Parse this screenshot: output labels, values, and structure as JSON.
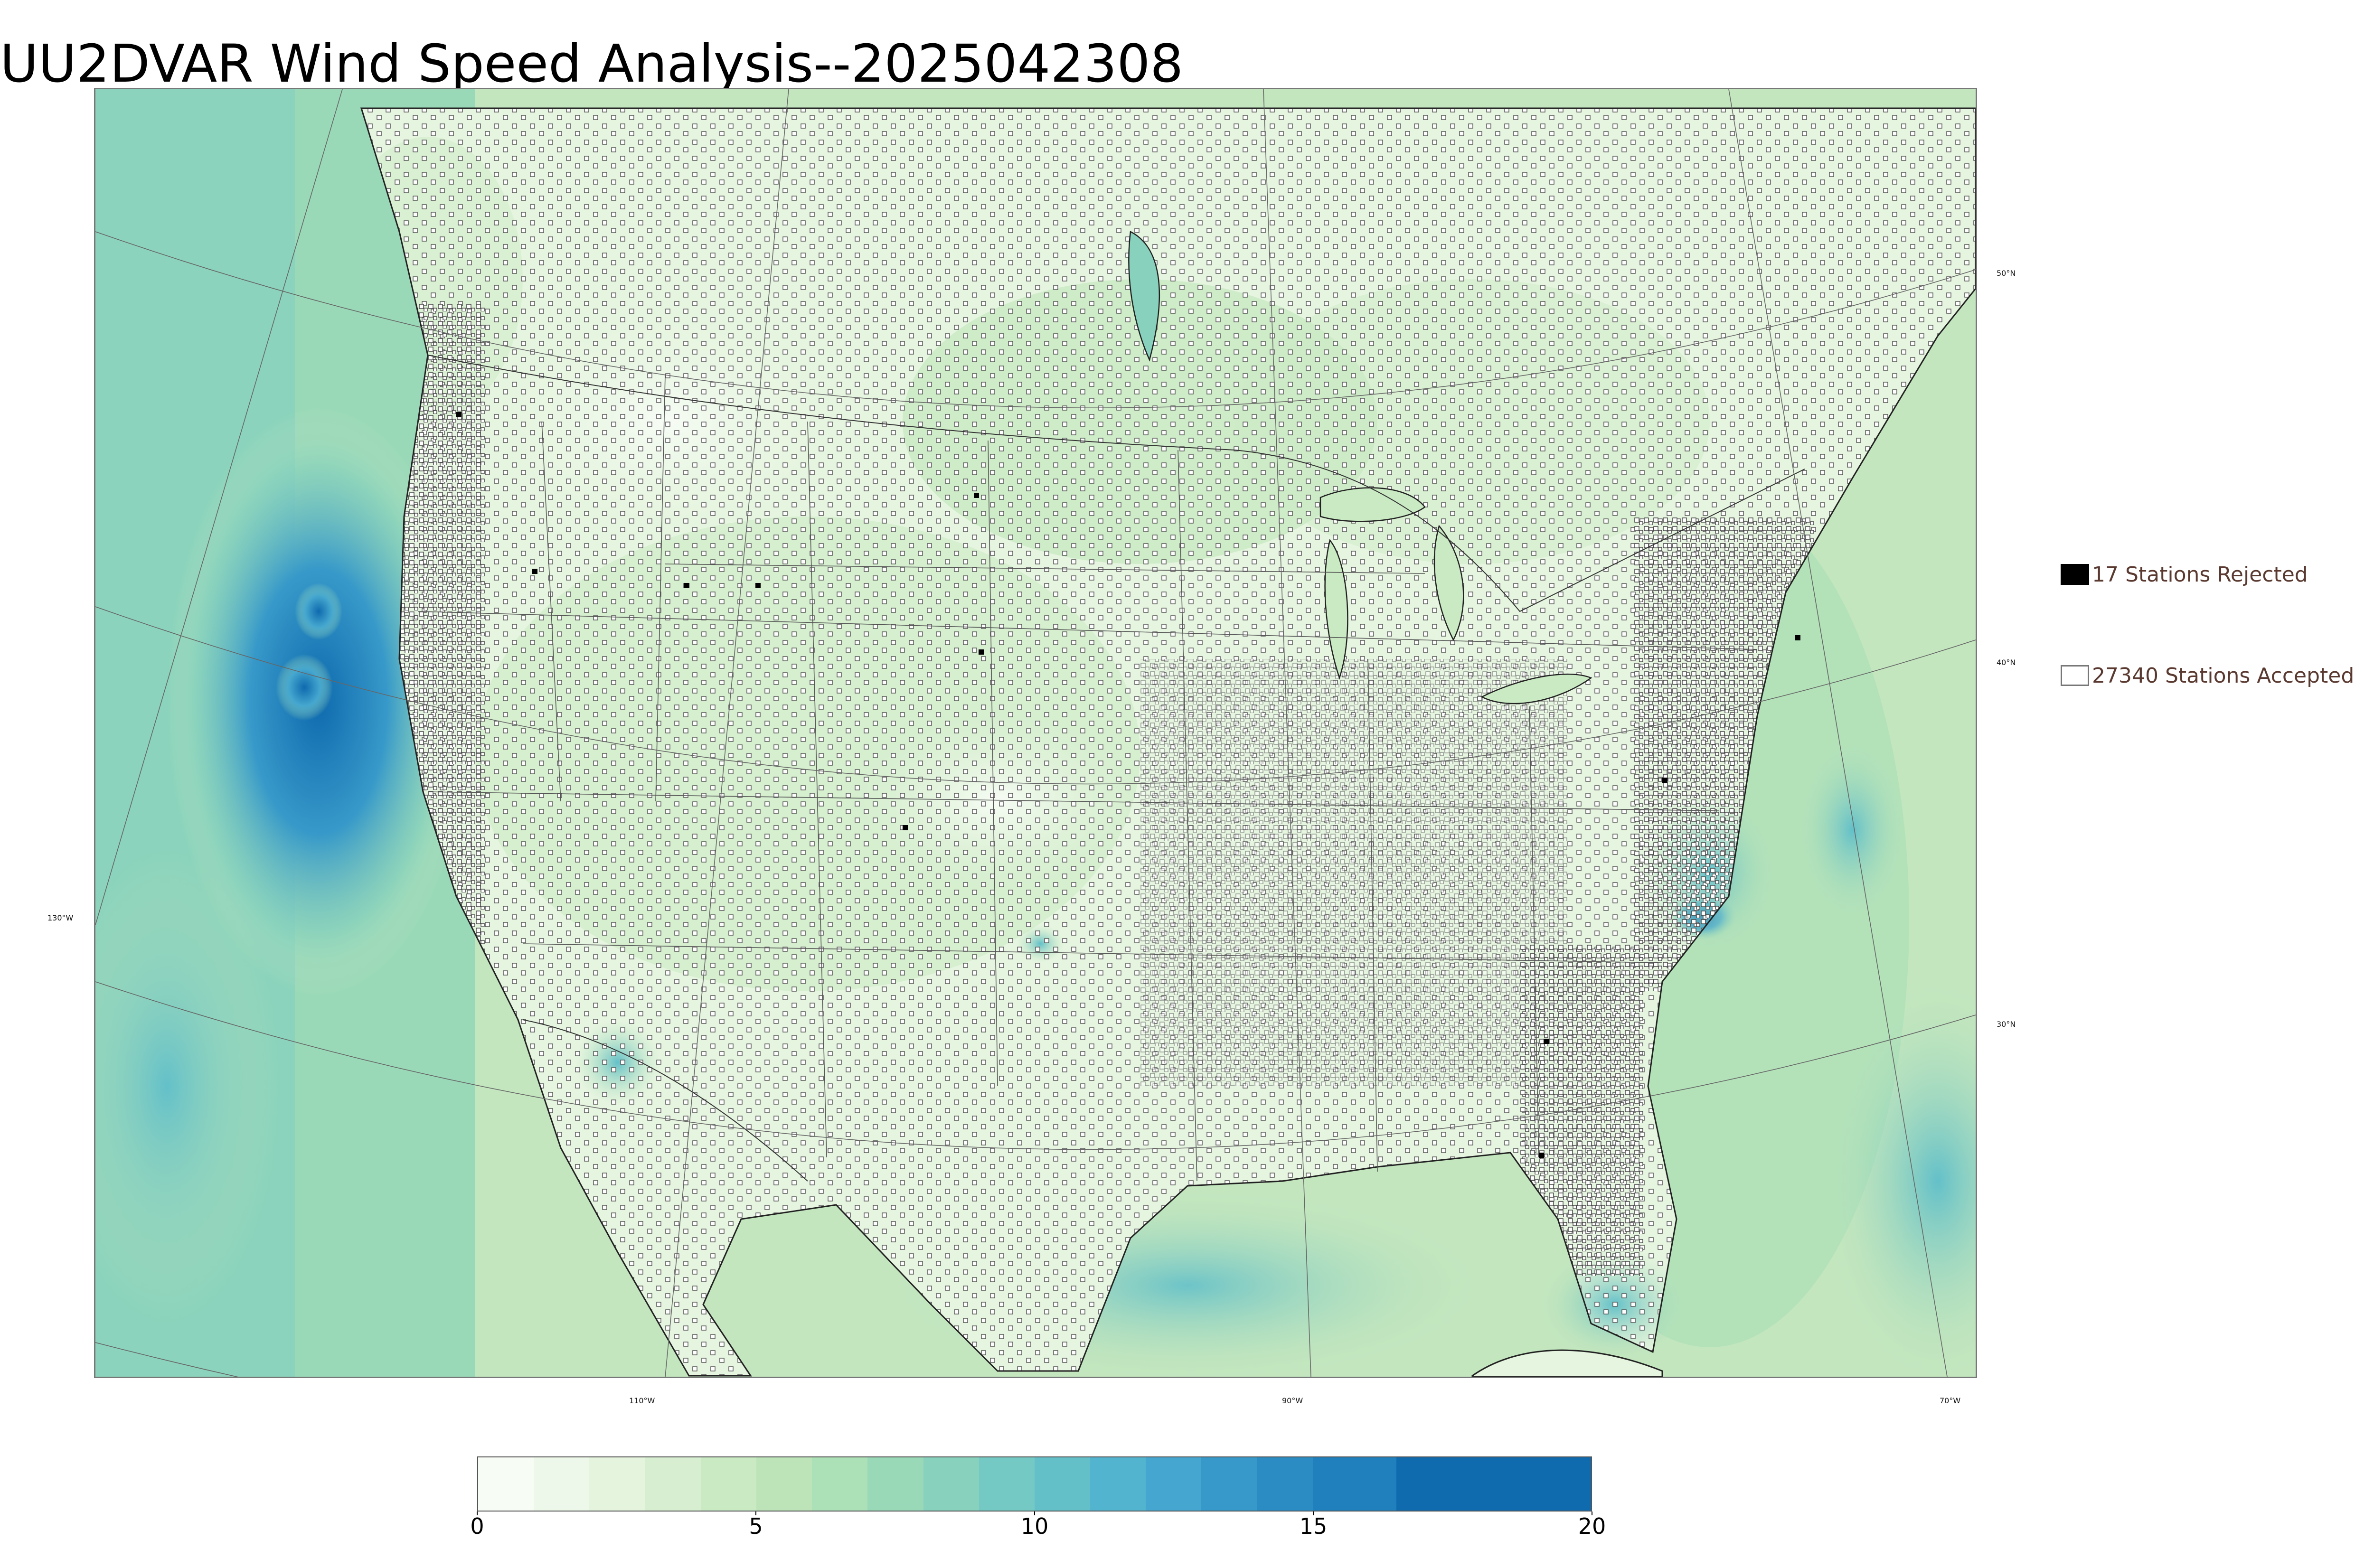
{
  "title": "UU2DVAR Wind Speed Analysis--2025042308",
  "map": {
    "lat_labels": [
      "50°N",
      "40°N",
      "30°N"
    ],
    "lon_labels": [
      "130°W",
      "110°W",
      "90°W",
      "70°W"
    ]
  },
  "legend": {
    "rejected_label": "17 Stations Rejected",
    "accepted_label": "27340 Stations Accepted",
    "rejected_color": "#000000",
    "accepted_color": "#ffffff"
  },
  "colorbar": {
    "ticks": [
      "0",
      "5",
      "10",
      "15",
      "20"
    ],
    "range": [
      0,
      20
    ],
    "bins": [
      {
        "from": 0,
        "to": 1,
        "color": "#f7fcf5"
      },
      {
        "from": 1,
        "to": 2,
        "color": "#eef8ea"
      },
      {
        "from": 2,
        "to": 3,
        "color": "#e4f4dd"
      },
      {
        "from": 3,
        "to": 4,
        "color": "#d7efd0"
      },
      {
        "from": 4,
        "to": 5,
        "color": "#c9eac3"
      },
      {
        "from": 5,
        "to": 6,
        "color": "#bce4b8"
      },
      {
        "from": 6,
        "to": 7,
        "color": "#ace0b6"
      },
      {
        "from": 7,
        "to": 8,
        "color": "#9ad9b8"
      },
      {
        "from": 8,
        "to": 9,
        "color": "#87d1bd"
      },
      {
        "from": 9,
        "to": 10,
        "color": "#75c9c4"
      },
      {
        "from": 10,
        "to": 11,
        "color": "#63c0c9"
      },
      {
        "from": 11,
        "to": 12,
        "color": "#53b4d0"
      },
      {
        "from": 12,
        "to": 13,
        "color": "#45a7cf"
      },
      {
        "from": 13,
        "to": 14,
        "color": "#3799c9"
      },
      {
        "from": 14,
        "to": 15,
        "color": "#2b8cc3"
      },
      {
        "from": 15,
        "to": 16.5,
        "color": "#2080bd"
      },
      {
        "from": 16.5,
        "to": 20,
        "color": "#0f6aae"
      }
    ]
  }
}
